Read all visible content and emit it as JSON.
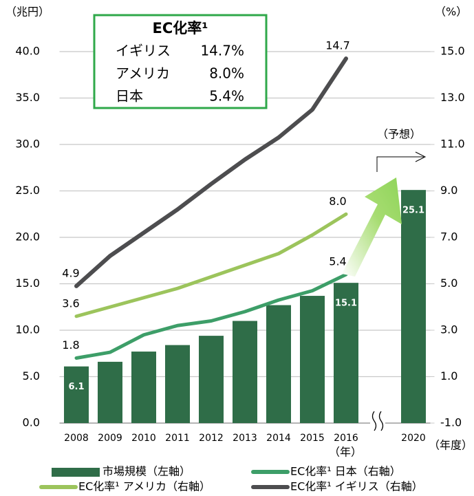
{
  "chart_data": {
    "type": "bar",
    "ylabel": "（兆円）",
    "y2label": "（%）",
    "categories": [
      "2008",
      "2009",
      "2010",
      "2011",
      "2012",
      "2013",
      "2014",
      "2015",
      "2016",
      null,
      "2020"
    ],
    "series": [
      {
        "name": "市場規模（左軸）",
        "type": "bar",
        "color": "#2f6d48",
        "axis": "y",
        "values": [
          6.1,
          6.6,
          7.7,
          8.4,
          9.4,
          11.0,
          12.7,
          13.7,
          15.1,
          null,
          25.1
        ],
        "value_labels": [
          "6.1",
          null,
          null,
          null,
          null,
          null,
          null,
          null,
          "15.1",
          null,
          "25.1"
        ]
      },
      {
        "name": "EC化率¹ 日本（右軸）",
        "type": "line",
        "color": "#3d9e68",
        "axis": "y2",
        "values": [
          1.8,
          2.05,
          2.8,
          3.2,
          3.4,
          3.8,
          4.3,
          4.7,
          5.4,
          null,
          null
        ],
        "value_labels": [
          "1.8",
          null,
          null,
          null,
          null,
          null,
          null,
          null,
          "5.4",
          null,
          null
        ]
      },
      {
        "name": "EC化率¹ アメリカ（右軸）",
        "type": "line",
        "color": "#9cc45c",
        "axis": "y2",
        "values": [
          3.6,
          4.0,
          4.4,
          4.8,
          5.3,
          5.8,
          6.3,
          7.1,
          8.0,
          null,
          null
        ],
        "value_labels": [
          "3.6",
          null,
          null,
          null,
          null,
          null,
          null,
          null,
          "8.0",
          null,
          null
        ]
      },
      {
        "name": "EC化率¹ イギリス（右軸）",
        "type": "line",
        "color": "#4d4d4f",
        "axis": "y2",
        "values": [
          4.9,
          6.2,
          7.2,
          8.2,
          9.3,
          10.35,
          11.3,
          12.5,
          14.7,
          null,
          null
        ],
        "value_labels": [
          "4.9",
          null,
          null,
          null,
          null,
          null,
          null,
          null,
          "14.7",
          null,
          null
        ]
      }
    ],
    "ylim": [
      0,
      40
    ],
    "yticks": [
      {
        "value": 0,
        "label": "0.0"
      },
      {
        "value": 5,
        "label": "5.0"
      },
      {
        "value": 10,
        "label": "10.0"
      },
      {
        "value": 15,
        "label": "15.0"
      },
      {
        "value": 20,
        "label": "20.0"
      },
      {
        "value": 25,
        "label": "25.0"
      },
      {
        "value": 30,
        "label": "30.0"
      },
      {
        "value": 35,
        "label": "35.0"
      },
      {
        "value": 40,
        "label": "40.0"
      }
    ],
    "y2lim": [
      -1,
      15
    ],
    "y2ticks": [
      {
        "value": -1,
        "label": "-1.0"
      },
      {
        "value": 1,
        "label": "1.0"
      },
      {
        "value": 3,
        "label": "3.0"
      },
      {
        "value": 5,
        "label": "5.0"
      },
      {
        "value": 7,
        "label": "7.0"
      },
      {
        "value": 9,
        "label": "9.0"
      },
      {
        "value": 11,
        "label": "11.0"
      },
      {
        "value": 13,
        "label": "13.0"
      },
      {
        "value": 15,
        "label": "15.0"
      }
    ],
    "grid": true,
    "annotations": {
      "forecast": "（予想）",
      "year": "（年）",
      "fiscal_year": "（年度）"
    },
    "info_box": {
      "title": "EC化率¹",
      "rows": [
        [
          "イギリス",
          "14.7%"
        ],
        [
          "アメリカ",
          "8.0%"
        ],
        [
          "日本",
          "5.4%"
        ]
      ]
    }
  }
}
